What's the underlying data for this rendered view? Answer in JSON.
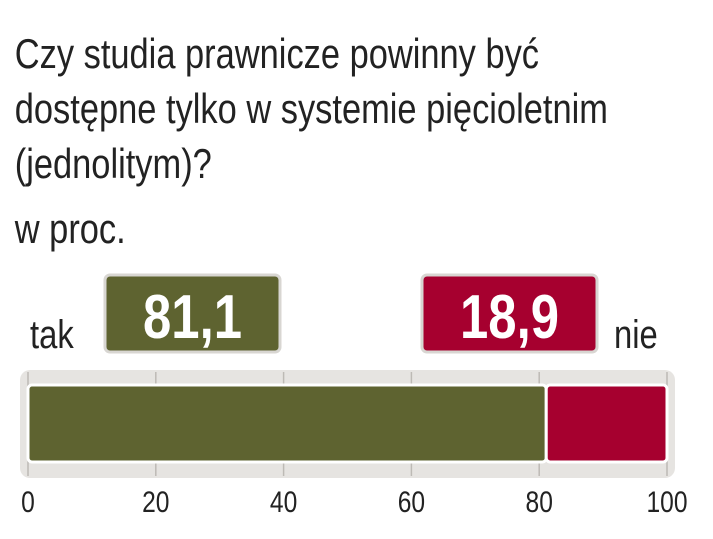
{
  "chart_data": {
    "type": "bar",
    "stacked": true,
    "orientation": "horizontal",
    "title": [
      "Czy studia prawnicze powinny być",
      "dostępne tylko w systemie pięcioletnim",
      "(jednolitym)?"
    ],
    "subtitle": "w proc.",
    "series": [
      {
        "name": "tak",
        "color": "#5e6330",
        "values": [
          81.1
        ],
        "value_labels": [
          "81,1"
        ]
      },
      {
        "name": "nie",
        "color": "#a6002f",
        "values": [
          18.9
        ],
        "value_labels": [
          "18,9"
        ]
      }
    ],
    "xlim": [
      0,
      100
    ],
    "xticks": [
      0,
      20,
      40,
      60,
      80,
      100
    ],
    "grid": true
  }
}
